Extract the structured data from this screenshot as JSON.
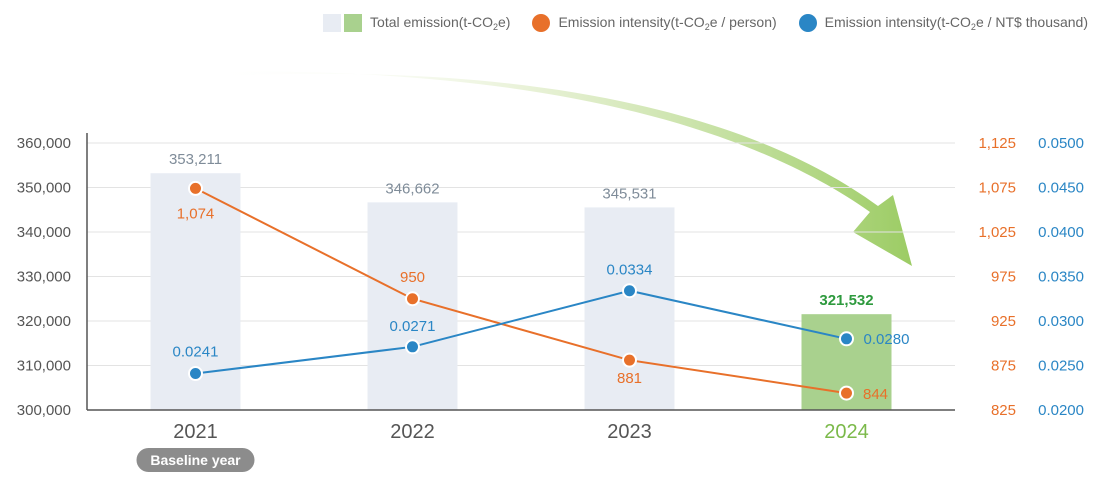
{
  "legend": {
    "total": {
      "pre": "Total emission(t-CO",
      "sub": "2",
      "post": "e)"
    },
    "person": {
      "pre": "Emission intensity(t-CO",
      "sub": "2",
      "post": "e / person)"
    },
    "revenue": {
      "pre": "Emission intensity(t-CO",
      "sub": "2",
      "post": "e / NT$ thousand)"
    }
  },
  "baseline_badge": "Baseline year",
  "colors": {
    "bar": "#e8ecf3",
    "bar_highlight": "#a9d18e",
    "orange": "#e8702a",
    "blue": "#2a86c5",
    "bar_label": "#7f8c99",
    "highlight_label": "#2e9a3e",
    "highlight_year": "#7bb94a",
    "axis": "#555555",
    "grid": "#e3e3e3"
  },
  "chart_data": {
    "type": "bar",
    "categories": [
      "2021",
      "2022",
      "2023",
      "2024"
    ],
    "series": [
      {
        "name": "Total emission(t-CO2e)",
        "type": "bar",
        "values": [
          353211,
          346662,
          345531,
          321532
        ],
        "labels": [
          "353,211",
          "346,662",
          "345,531",
          "321,532"
        ]
      },
      {
        "name": "Emission intensity(t-CO2e / person)",
        "type": "line",
        "values": [
          1074,
          950,
          881,
          844
        ],
        "labels": [
          "1,074",
          "950",
          "881",
          "844"
        ]
      },
      {
        "name": "Emission intensity(t-CO2e / NT$ thousand)",
        "type": "line",
        "values": [
          0.0241,
          0.0271,
          0.0334,
          0.028
        ],
        "labels": [
          "0.0241",
          "0.0271",
          "0.0334",
          "0.0280"
        ]
      }
    ],
    "y_left": {
      "range": [
        300000,
        360000
      ],
      "ticks": [
        "300,000",
        "310,000",
        "320,000",
        "330,000",
        "340,000",
        "350,000",
        "360,000"
      ]
    },
    "y_right_1": {
      "range": [
        825,
        1125
      ],
      "ticks": [
        "825",
        "875",
        "925",
        "975",
        "1,025",
        "1,075",
        "1,125"
      ]
    },
    "y_right_2": {
      "range": [
        0.02,
        0.05
      ],
      "ticks": [
        "0.0200",
        "0.0250",
        "0.0300",
        "0.0350",
        "0.0400",
        "0.0450",
        "0.0500"
      ]
    },
    "grid": true,
    "legend_position": "top-right",
    "highlight_category": "2024",
    "baseline_category": "2021"
  }
}
